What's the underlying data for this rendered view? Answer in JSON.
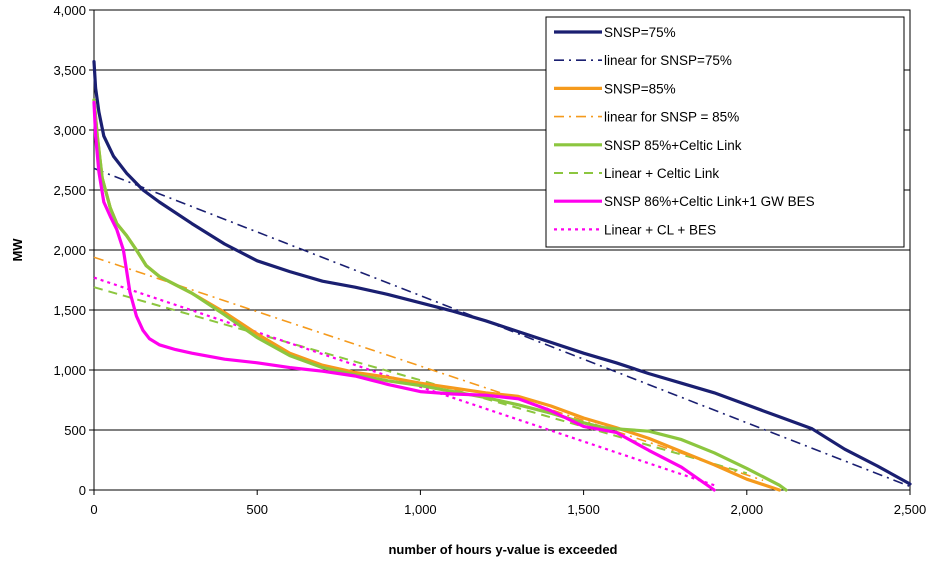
{
  "chart_data": {
    "type": "line",
    "xlabel": "number of hours y-value is exceeded",
    "ylabel": "MW",
    "xlim": [
      0,
      2500
    ],
    "ylim": [
      0,
      4000
    ],
    "xticks": [
      0,
      500,
      1000,
      1500,
      2000,
      2500
    ],
    "yticks": [
      0,
      500,
      1000,
      1500,
      2000,
      2500,
      3000,
      3500,
      4000
    ],
    "xtick_labels": [
      "0",
      "500",
      "1,000",
      "1,500",
      "2,000",
      "2,500"
    ],
    "ytick_labels": [
      "0",
      "500",
      "1,000",
      "1,500",
      "2,000",
      "2,500",
      "3,000",
      "3,500",
      "4,000"
    ],
    "grid": "horizontal",
    "legend_position": "top-right",
    "series": [
      {
        "name": "SNSP=75%",
        "color": "#1a1f71",
        "style": "solid",
        "x": [
          0,
          5,
          15,
          30,
          60,
          100,
          150,
          200,
          300,
          400,
          500,
          600,
          700,
          800,
          900,
          1000,
          1100,
          1200,
          1300,
          1400,
          1500,
          1600,
          1700,
          1800,
          1900,
          2000,
          2100,
          2200,
          2300,
          2400,
          2500
        ],
        "y": [
          3570,
          3350,
          3150,
          2950,
          2780,
          2640,
          2500,
          2400,
          2220,
          2050,
          1910,
          1820,
          1740,
          1690,
          1630,
          1560,
          1490,
          1410,
          1320,
          1230,
          1140,
          1060,
          970,
          890,
          810,
          710,
          610,
          510,
          340,
          200,
          50
        ]
      },
      {
        "name": "linear for SNSP=75%",
        "color": "#1a1f71",
        "style": "dashdot",
        "x": [
          0,
          2500
        ],
        "y": [
          2680,
          30
        ]
      },
      {
        "name": "SNSP=85%",
        "color": "#f59a1c",
        "style": "solid",
        "x": [
          0,
          10,
          25,
          50,
          70,
          100,
          130,
          160,
          200,
          300,
          400,
          500,
          600,
          700,
          800,
          900,
          1000,
          1100,
          1200,
          1300,
          1400,
          1500,
          1600,
          1700,
          1800,
          1900,
          2000,
          2100
        ],
        "y": [
          3250,
          2950,
          2600,
          2350,
          2220,
          2120,
          2000,
          1870,
          1780,
          1640,
          1480,
          1300,
          1140,
          1040,
          980,
          940,
          890,
          850,
          810,
          780,
          700,
          600,
          520,
          430,
          320,
          210,
          90,
          0
        ]
      },
      {
        "name": "linear for SNSP = 85%",
        "color": "#f59a1c",
        "style": "dashdot",
        "x": [
          0,
          2050
        ],
        "y": [
          1940,
          80
        ]
      },
      {
        "name": "SNSP 85%+Celtic Link",
        "color": "#8cc63f",
        "style": "solid",
        "x": [
          0,
          10,
          25,
          50,
          70,
          100,
          130,
          160,
          200,
          300,
          400,
          500,
          600,
          700,
          800,
          900,
          1000,
          1100,
          1200,
          1300,
          1400,
          1500,
          1560,
          1600,
          1700,
          1800,
          1900,
          2000,
          2100,
          2120
        ],
        "y": [
          3250,
          2950,
          2600,
          2350,
          2220,
          2120,
          2000,
          1870,
          1780,
          1640,
          1460,
          1270,
          1120,
          1020,
          960,
          910,
          870,
          820,
          770,
          710,
          640,
          560,
          520,
          510,
          490,
          420,
          310,
          180,
          40,
          0
        ]
      },
      {
        "name": "Linear + Celtic Link",
        "color": "#8cc63f",
        "style": "dash",
        "x": [
          0,
          2000
        ],
        "y": [
          1690,
          140
        ]
      },
      {
        "name": "SNSP 86%+Celtic Link+1 GW BES",
        "color": "#ff00ee",
        "style": "solid",
        "x": [
          0,
          5,
          15,
          30,
          50,
          70,
          90,
          110,
          130,
          150,
          170,
          200,
          250,
          300,
          400,
          500,
          600,
          700,
          800,
          900,
          1000,
          1100,
          1200,
          1300,
          1400,
          1500,
          1600,
          1700,
          1800,
          1900
        ],
        "y": [
          3230,
          2950,
          2650,
          2400,
          2280,
          2170,
          2000,
          1650,
          1450,
          1330,
          1260,
          1210,
          1170,
          1140,
          1090,
          1060,
          1020,
          990,
          950,
          880,
          820,
          800,
          790,
          760,
          660,
          530,
          480,
          330,
          190,
          0
        ]
      },
      {
        "name": "Linear + CL + BES",
        "color": "#ff00ee",
        "style": "dot",
        "x": [
          0,
          1900
        ],
        "y": [
          1770,
          40
        ]
      }
    ]
  }
}
